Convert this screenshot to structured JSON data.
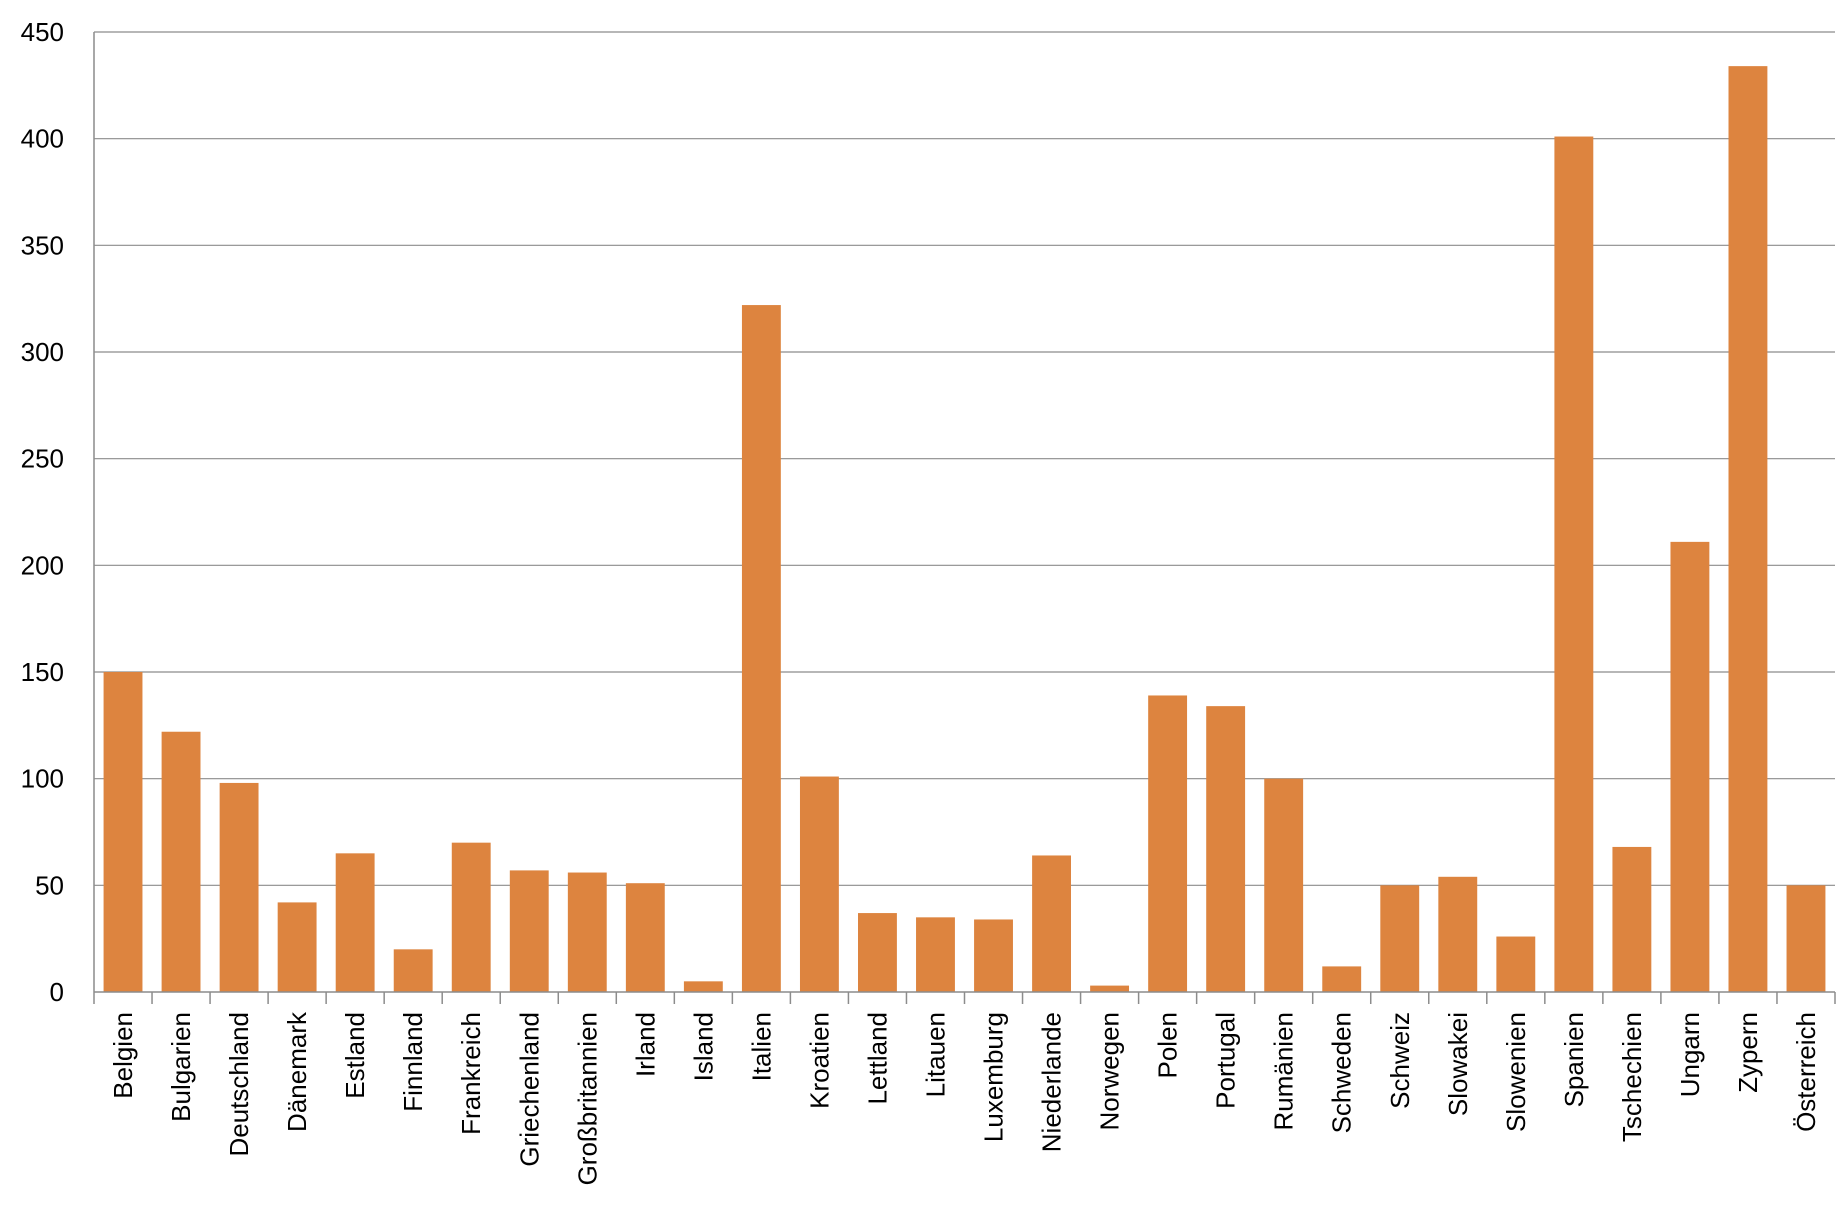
{
  "chart_data": {
    "type": "bar",
    "title": "",
    "xlabel": "",
    "ylabel": "",
    "ylim": [
      0,
      450
    ],
    "yticks": [
      0,
      50,
      100,
      150,
      200,
      250,
      300,
      350,
      400,
      450
    ],
    "grid": true,
    "legend": "none",
    "bar_color": "#DD843F",
    "categories": [
      "Belgien",
      "Bulgarien",
      "Deutschland",
      "Dänemark",
      "Estland",
      "Finnland",
      "Frankreich",
      "Griechenland",
      "Großbritannien",
      "Irland",
      "Island",
      "Italien",
      "Kroatien",
      "Lettland",
      "Litauen",
      "Luxemburg",
      "Niederlande",
      "Norwegen",
      "Polen",
      "Portugal",
      "Rumänien",
      "Schweden",
      "Schweiz",
      "Slowakei",
      "Slowenien",
      "Spanien",
      "Tschechien",
      "Ungarn",
      "Zypern",
      "Österreich"
    ],
    "values": [
      150,
      122,
      98,
      42,
      65,
      20,
      70,
      57,
      56,
      51,
      5,
      322,
      101,
      37,
      35,
      34,
      64,
      3,
      139,
      134,
      100,
      12,
      50,
      54,
      26,
      401,
      68,
      211,
      434,
      50
    ]
  }
}
